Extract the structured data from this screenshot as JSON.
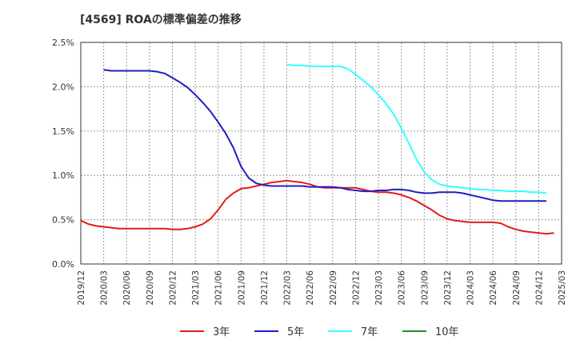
{
  "chart_data": {
    "type": "line",
    "title": "[4569]  ROAの標準偏差の推移",
    "xlabel": "",
    "ylabel": "",
    "ylim": [
      0,
      2.5
    ],
    "y_ticks": [
      "0.0%",
      "0.5%",
      "1.0%",
      "1.5%",
      "2.0%",
      "2.5%"
    ],
    "y_tick_values": [
      0,
      0.5,
      1.0,
      1.5,
      2.0,
      2.5
    ],
    "x_ticks": [
      "2019/12",
      "2020/03",
      "2020/06",
      "2020/09",
      "2020/12",
      "2021/03",
      "2021/06",
      "2021/09",
      "2021/12",
      "2022/03",
      "2022/06",
      "2022/09",
      "2022/12",
      "2023/03",
      "2023/06",
      "2023/09",
      "2023/12",
      "2024/03",
      "2024/06",
      "2024/09",
      "2024/12",
      "2025/03"
    ],
    "legend_position": "bottom",
    "series": [
      {
        "name": "3年",
        "color": "#e31a1c",
        "start_index": 0,
        "values": [
          0.49,
          0.45,
          0.43,
          0.42,
          0.41,
          0.4,
          0.4,
          0.4,
          0.4,
          0.4,
          0.4,
          0.4,
          0.39,
          0.39,
          0.4,
          0.42,
          0.45,
          0.51,
          0.61,
          0.73,
          0.8,
          0.85,
          0.86,
          0.88,
          0.9,
          0.92,
          0.93,
          0.94,
          0.93,
          0.92,
          0.9,
          0.87,
          0.86,
          0.86,
          0.86,
          0.86,
          0.86,
          0.84,
          0.82,
          0.81,
          0.81,
          0.8,
          0.78,
          0.75,
          0.71,
          0.66,
          0.61,
          0.55,
          0.51,
          0.49,
          0.48,
          0.47,
          0.47,
          0.47,
          0.47,
          0.46,
          0.42,
          0.39,
          0.37,
          0.36,
          0.35,
          0.34,
          0.35
        ]
      },
      {
        "name": "5年",
        "color": "#1f1fbf",
        "start_index": 3,
        "values": [
          2.19,
          2.18,
          2.18,
          2.18,
          2.18,
          2.18,
          2.18,
          2.17,
          2.15,
          2.1,
          2.05,
          1.99,
          1.91,
          1.82,
          1.72,
          1.6,
          1.47,
          1.31,
          1.1,
          0.97,
          0.91,
          0.89,
          0.88,
          0.88,
          0.88,
          0.88,
          0.88,
          0.87,
          0.87,
          0.87,
          0.87,
          0.86,
          0.84,
          0.83,
          0.82,
          0.82,
          0.83,
          0.83,
          0.84,
          0.84,
          0.83,
          0.81,
          0.8,
          0.8,
          0.81,
          0.81,
          0.81,
          0.8,
          0.78,
          0.76,
          0.74,
          0.72,
          0.71,
          0.71,
          0.71,
          0.71,
          0.71,
          0.71,
          0.71
        ]
      },
      {
        "name": "7年",
        "color": "#33ffff",
        "start_index": 27,
        "values": [
          2.25,
          2.24,
          2.24,
          2.23,
          2.23,
          2.23,
          2.23,
          2.23,
          2.2,
          2.14,
          2.07,
          2.0,
          1.91,
          1.81,
          1.69,
          1.53,
          1.36,
          1.18,
          1.04,
          0.95,
          0.9,
          0.88,
          0.87,
          0.86,
          0.85,
          0.84,
          0.84,
          0.83,
          0.83,
          0.82,
          0.82,
          0.82,
          0.81,
          0.81,
          0.8
        ]
      },
      {
        "name": "10年",
        "color": "#2a8a2a",
        "start_index": 0,
        "values": []
      }
    ]
  }
}
